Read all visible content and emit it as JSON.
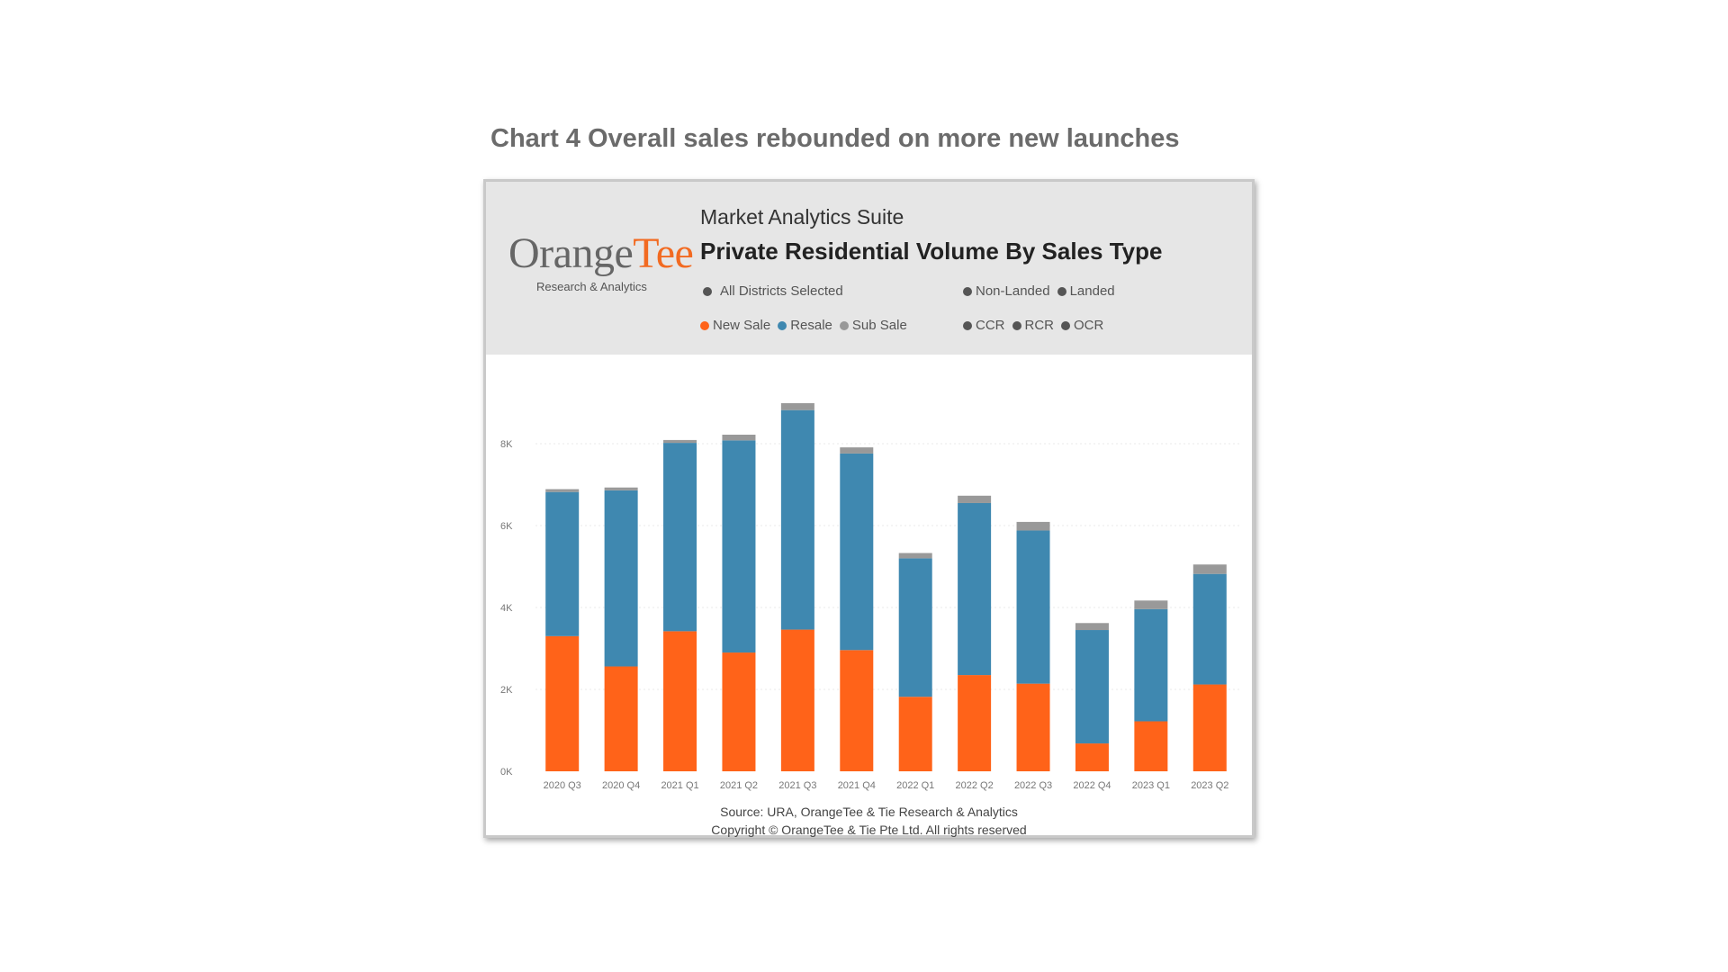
{
  "heading": "Chart 4 Overall sales rebounded on more new launches",
  "logo": {
    "main": "Orange",
    "accent": "Tee",
    "subtitle": "Research & Analytics"
  },
  "suite_title": "Market Analytics Suite",
  "chart_title": "Private Residential Volume By Sales Type",
  "filters": {
    "districts": "All Districts Selected",
    "property_types": [
      "Non-Landed",
      "Landed"
    ],
    "regions": [
      "CCR",
      "RCR",
      "OCR"
    ]
  },
  "legend": [
    {
      "name": "New Sale",
      "color": "#ff6319"
    },
    {
      "name": "Resale",
      "color": "#3f88b0"
    },
    {
      "name": "Sub Sale",
      "color": "#999999"
    }
  ],
  "source_line1": "Source: URA, OrangeTee & Tie Research & Analytics",
  "source_line2": "Copyright © OrangeTee & Tie Pte Ltd. All rights reserved",
  "chart_data": {
    "type": "bar",
    "stacked": true,
    "categories": [
      "2020 Q3",
      "2020 Q4",
      "2021 Q1",
      "2021 Q2",
      "2021 Q3",
      "2021 Q4",
      "2022 Q1",
      "2022 Q2",
      "2022 Q3",
      "2022 Q4",
      "2023 Q1",
      "2023 Q2"
    ],
    "series": [
      {
        "name": "New Sale",
        "color": "#ff6319",
        "values": [
          3300,
          2560,
          3420,
          2900,
          3460,
          2960,
          1820,
          2350,
          2140,
          680,
          1220,
          2120
        ]
      },
      {
        "name": "Resale",
        "color": "#3f88b0",
        "values": [
          3520,
          4300,
          4600,
          5180,
          5360,
          4800,
          3380,
          4200,
          3740,
          2770,
          2740,
          2700
        ]
      },
      {
        "name": "Sub Sale",
        "color": "#999999",
        "values": [
          70,
          70,
          70,
          140,
          170,
          150,
          130,
          180,
          210,
          170,
          210,
          230
        ]
      }
    ],
    "yticks": [
      "0K",
      "2K",
      "4K",
      "6K",
      "8K"
    ],
    "ylim": [
      0,
      10000
    ],
    "grid": true
  }
}
